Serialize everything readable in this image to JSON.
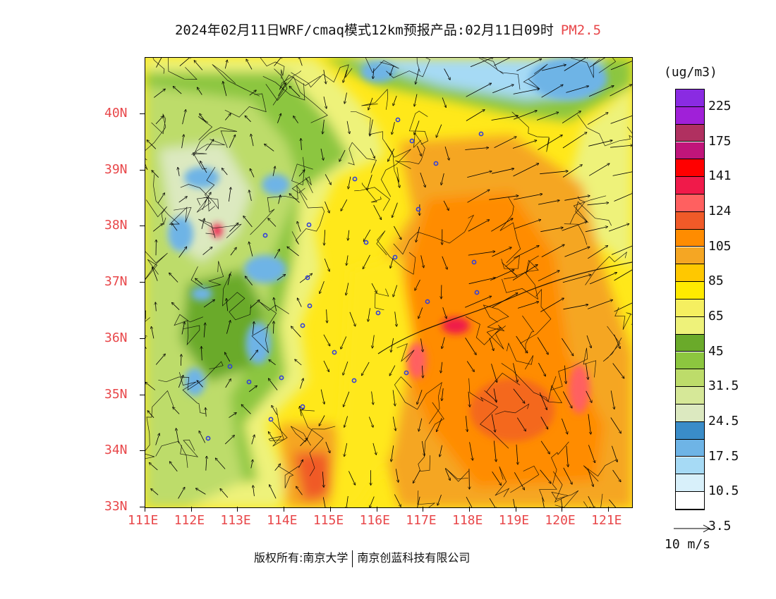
{
  "title": {
    "main": "2024年02月11日WRF/cmaq模式12km预报产品:02月11日09时",
    "pollutant": "PM2.5"
  },
  "map": {
    "lon_range": [
      111,
      121.5
    ],
    "lat_range": [
      33,
      41
    ],
    "lon_ticks": [
      "111E",
      "112E",
      "113E",
      "114E",
      "115E",
      "116E",
      "117E",
      "118E",
      "119E",
      "120E",
      "121E"
    ],
    "lat_ticks": [
      "33N",
      "34N",
      "35N",
      "36N",
      "37N",
      "38N",
      "39N",
      "40N"
    ],
    "tick_color": "#e8474a"
  },
  "colorbar": {
    "unit": "(ug/m3)",
    "levels": [
      "225",
      "175",
      "141",
      "124",
      "105",
      "85",
      "65",
      "45",
      "31.5",
      "24.5",
      "17.5",
      "10.5",
      "3.5"
    ],
    "colors_top_to_bottom": [
      "#8a2be2",
      "#a020d8",
      "#b03060",
      "#c0157a",
      "#ff0000",
      "#f01a4a",
      "#ff6060",
      "#f05a28",
      "#ff8c00",
      "#f5a623",
      "#ffc800",
      "#ffea00",
      "#f5ef60",
      "#eef27a",
      "#6aaa2a",
      "#8cc63f",
      "#bddc6a",
      "#d6e898",
      "#dce9c0",
      "#3a8cc8",
      "#6eb4e6",
      "#a6daf5",
      "#d8f0fa",
      "#ffffff"
    ]
  },
  "wind_reference": {
    "label": "10 m/s"
  },
  "copyright": {
    "left": "版权所有:南京大学",
    "right": "南京创蓝科技有限公司"
  }
}
